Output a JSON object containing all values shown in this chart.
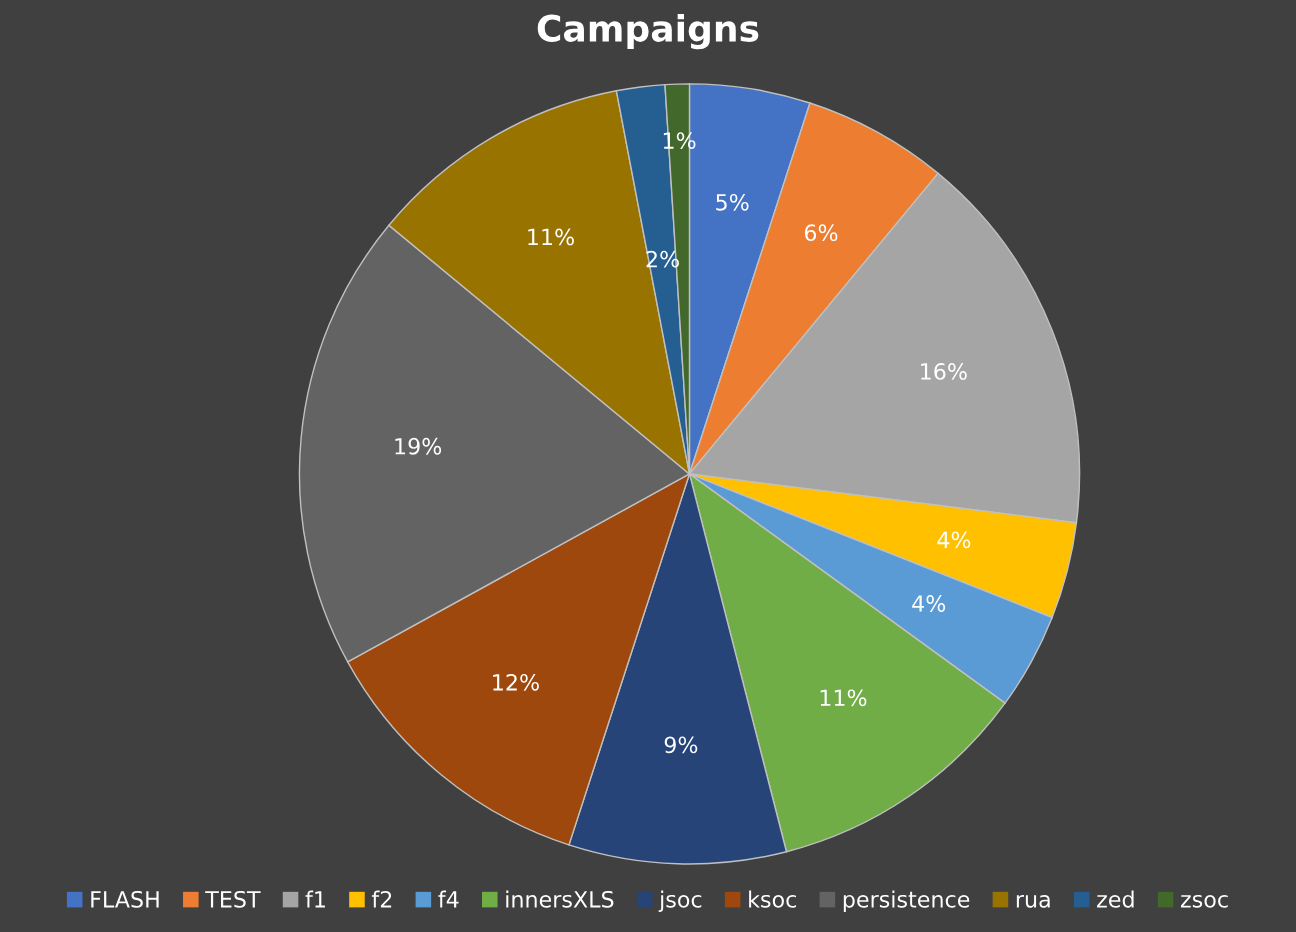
{
  "chart_data": {
    "type": "pie",
    "title": "Campaigns",
    "categories": [
      "FLASH",
      "TEST",
      "f1",
      "f2",
      "f4",
      "innersXLS",
      "jsoc",
      "ksoc",
      "persistence",
      "rua",
      "zed",
      "zsoc"
    ],
    "values": [
      5,
      6,
      16,
      4,
      4,
      11,
      9,
      12,
      19,
      11,
      2,
      1
    ],
    "colors": [
      "#4472c4",
      "#ed7d31",
      "#a5a5a5",
      "#ffc000",
      "#5b9bd5",
      "#70ad47",
      "#264478",
      "#9e480e",
      "#636363",
      "#997300",
      "#255e91",
      "#43682b"
    ],
    "value_labels": [
      "5%",
      "6%",
      "16%",
      "4%",
      "4%",
      "11%",
      "9%",
      "12%",
      "19%",
      "11%",
      "2%",
      "1%"
    ],
    "legend": "bottom"
  }
}
